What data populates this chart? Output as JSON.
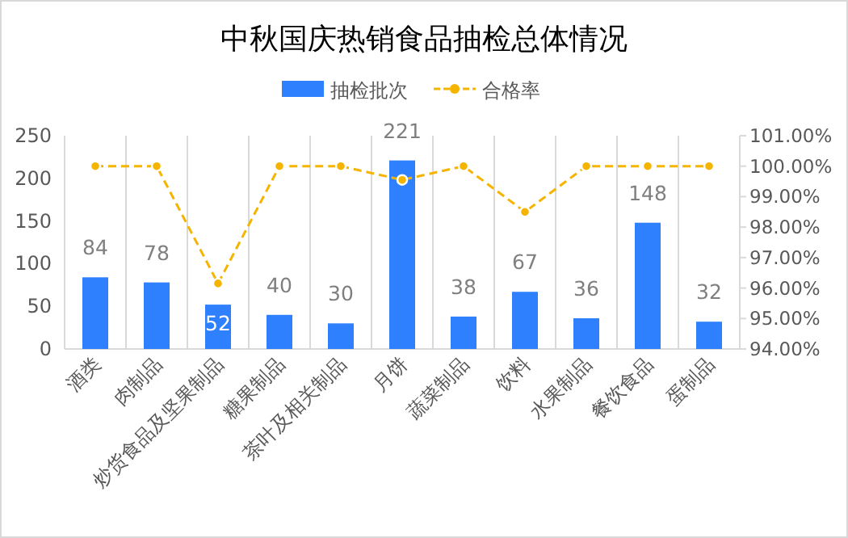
{
  "chart_data": {
    "type": "bar",
    "title": "中秋国庆热销食品抽检总体情况",
    "categories": [
      "酒类",
      "肉制品",
      "炒货食品及坚果制品",
      "糖果制品",
      "茶叶及相关制品",
      "月饼",
      "蔬菜制品",
      "饮料",
      "水果制品",
      "餐饮食品",
      "蛋制品"
    ],
    "series": [
      {
        "name": "抽检批次",
        "color": "#2f80ff",
        "values": [
          84,
          78,
          52,
          40,
          30,
          221,
          38,
          67,
          36,
          148,
          32
        ],
        "value_labels": [
          "84",
          "78",
          "52",
          "40",
          "30",
          "221",
          "38",
          "67",
          "36",
          "148",
          "32"
        ]
      },
      {
        "name": "合格率",
        "type": "line",
        "axis": "y2",
        "color": "#f5b400",
        "marker": "circle",
        "line_style": "dashed",
        "values": [
          100,
          100,
          96.15,
          100,
          100,
          99.55,
          100,
          98.5,
          100,
          100,
          100
        ]
      }
    ],
    "ylim": [
      0,
      250
    ],
    "yticks": [
      0,
      50,
      100,
      150,
      200,
      250
    ],
    "y2lim": [
      94,
      101
    ],
    "y2ticks": [
      {
        "value": 94,
        "label": "94.00%"
      },
      {
        "value": 95,
        "label": "95.00%"
      },
      {
        "value": 96,
        "label": "96.00%"
      },
      {
        "value": 97,
        "label": "97.00%"
      },
      {
        "value": 98,
        "label": "98.00%"
      },
      {
        "value": 99,
        "label": "99.00%"
      },
      {
        "value": 100,
        "label": "100.00%"
      },
      {
        "value": 101,
        "label": "101.00%"
      }
    ],
    "grid": "x",
    "legend": "top"
  }
}
